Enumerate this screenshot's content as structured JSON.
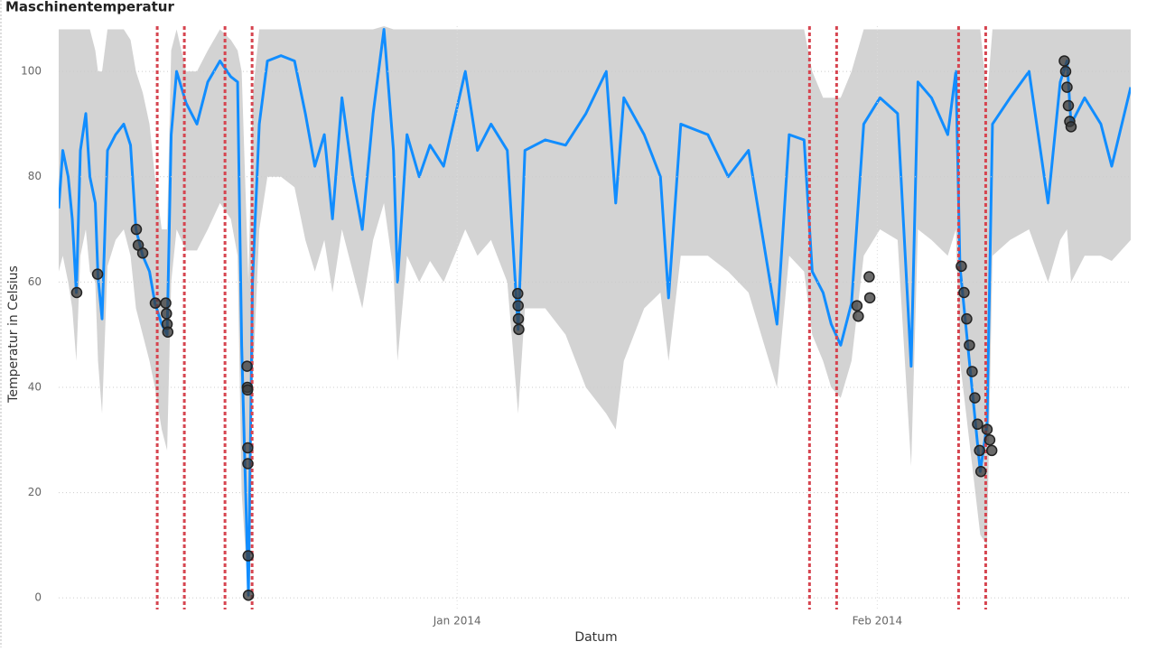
{
  "chart_data": {
    "type": "line",
    "title": "Maschinentemperatur",
    "x_label": "Datum",
    "y_label": "Temperatur in Celsius",
    "xlim": [
      1.6,
      80.7
    ],
    "xticks": [
      {
        "value": 31,
        "label": "Jan 2014"
      },
      {
        "value": 62,
        "label": "Feb 2014"
      }
    ],
    "ylim": [
      -2.2,
      108.6
    ],
    "yticks": [
      0,
      20,
      40,
      60,
      80,
      100
    ],
    "grid": true,
    "x": [
      1.6,
      1.9,
      2.3,
      2.6,
      2.9,
      3.2,
      3.6,
      3.9,
      4.3,
      4.5,
      4.8,
      5.2,
      5.8,
      6.4,
      6.9,
      7.3,
      7.8,
      8.3,
      8.7,
      9.2,
      9.6,
      9.9,
      10.3,
      11.0,
      11.8,
      12.6,
      13.5,
      14.3,
      14.8,
      15.1,
      15.6,
      15.9,
      16.4,
      17.0,
      18.0,
      19.0,
      19.8,
      20.5,
      21.2,
      21.8,
      22.5,
      23.3,
      24.0,
      24.8,
      25.6,
      26.3,
      26.6,
      27.3,
      28.2,
      29.0,
      30.0,
      31.6,
      32.5,
      33.5,
      34.7,
      35.5,
      36.0,
      37.5,
      39.0,
      40.5,
      42.0,
      42.7,
      43.3,
      44.8,
      46.0,
      46.6,
      47.5,
      49.5,
      51.0,
      52.5,
      54.6,
      55.5,
      56.6,
      57.2,
      58.0,
      58.6,
      59.3,
      60.1,
      61.0,
      62.2,
      63.5,
      64.5,
      65.0,
      66.0,
      67.2,
      67.8,
      68.1,
      69.6,
      70.1,
      70.5,
      71.8,
      73.2,
      74.6,
      75.5,
      76.0,
      76.3,
      77.3,
      78.5,
      79.3,
      80.7
    ],
    "band": {
      "color": "#d3d3d3",
      "lower": [
        62,
        65,
        60,
        55,
        45,
        65,
        70,
        62,
        60,
        45,
        35,
        63,
        68,
        70,
        65,
        55,
        50,
        45,
        40,
        32,
        28,
        60,
        70,
        66,
        66,
        70,
        75,
        72,
        65,
        20,
        0,
        40,
        70,
        80,
        80,
        78,
        68,
        62,
        68,
        58,
        70,
        62,
        55,
        68,
        75,
        62,
        45,
        65,
        60,
        64,
        60,
        70,
        65,
        68,
        60,
        35,
        55,
        55,
        50,
        40,
        35,
        32,
        45,
        55,
        58,
        45,
        65,
        65,
        62,
        58,
        40,
        65,
        62,
        50,
        45,
        40,
        38,
        45,
        65,
        70,
        68,
        25,
        70,
        68,
        65,
        70,
        45,
        12,
        10,
        65,
        68,
        70,
        60,
        68,
        70,
        60,
        65,
        65,
        64,
        68
      ],
      "upper": [
        108,
        108,
        108,
        108,
        108,
        108,
        108,
        108,
        104,
        100,
        100,
        108,
        108,
        108,
        106,
        100,
        96,
        90,
        80,
        70,
        70,
        104,
        108,
        100,
        100,
        104,
        108,
        106,
        104,
        100,
        60,
        95,
        108,
        108,
        108,
        108,
        108,
        108,
        108,
        108,
        108,
        108,
        108,
        108,
        108.6,
        108,
        108,
        108,
        108,
        108,
        108,
        108,
        108,
        108,
        108,
        108,
        108,
        108,
        108,
        108,
        108,
        108,
        108,
        108,
        108,
        108,
        108,
        108,
        108,
        108,
        108,
        108,
        108,
        100,
        95,
        95,
        95,
        100,
        108,
        108,
        108,
        108,
        108,
        108,
        108,
        108,
        108,
        108,
        95,
        108,
        108,
        108,
        108,
        108,
        108,
        108,
        108,
        108,
        108,
        108
      ]
    },
    "line": {
      "color": "#118dff",
      "values": [
        74,
        85,
        80,
        72,
        58,
        85,
        92,
        80,
        75,
        61,
        53,
        85,
        88,
        90,
        86,
        70,
        65,
        62,
        56,
        52,
        50,
        88,
        100,
        94,
        90,
        98,
        102,
        99,
        98,
        48,
        0.5,
        60,
        90,
        102,
        103,
        102,
        92,
        82,
        88,
        72,
        95,
        80,
        70,
        92,
        108,
        85,
        60,
        88,
        80,
        86,
        82,
        100,
        85,
        90,
        85,
        51,
        85,
        87,
        86,
        92,
        100,
        75,
        95,
        88,
        80,
        57,
        90,
        88,
        80,
        85,
        52,
        88,
        87,
        62,
        58,
        52,
        48,
        56,
        90,
        95,
        92,
        44,
        98,
        95,
        88,
        100,
        63,
        24,
        33,
        90,
        95,
        100,
        75,
        98,
        102,
        90,
        95,
        90,
        82,
        97
      ]
    },
    "anomalies": {
      "color": "#3a3a3a",
      "x": [
        2.93,
        4.47,
        7.33,
        7.47,
        7.8,
        8.73,
        9.5,
        9.55,
        9.6,
        9.65,
        15.5,
        15.52,
        15.54,
        15.55,
        15.56,
        15.58,
        15.6,
        35.47,
        35.5,
        35.52,
        35.55,
        60.5,
        60.6,
        61.4,
        61.45,
        68.2,
        68.4,
        68.6,
        68.8,
        69.0,
        69.2,
        69.4,
        69.55,
        69.65,
        70.1,
        70.3,
        70.45,
        75.8,
        75.9,
        76.0,
        76.1,
        76.2,
        76.3
      ],
      "values": [
        58,
        61.5,
        70,
        67,
        65.5,
        56,
        56,
        54,
        52,
        50.5,
        44,
        40,
        39.5,
        28.5,
        25.5,
        8,
        0.5,
        57.8,
        55.5,
        53,
        51,
        55.5,
        53.5,
        61,
        57,
        63,
        58,
        53,
        48,
        43,
        38,
        33,
        28,
        24,
        32,
        30,
        28,
        102,
        100,
        97,
        93.5,
        90.5,
        89.5
      ]
    },
    "markers": {
      "color": "#d64550",
      "x": [
        8.87,
        10.87,
        13.87,
        15.87,
        57.0,
        59.0,
        68.0,
        70.0
      ]
    }
  }
}
